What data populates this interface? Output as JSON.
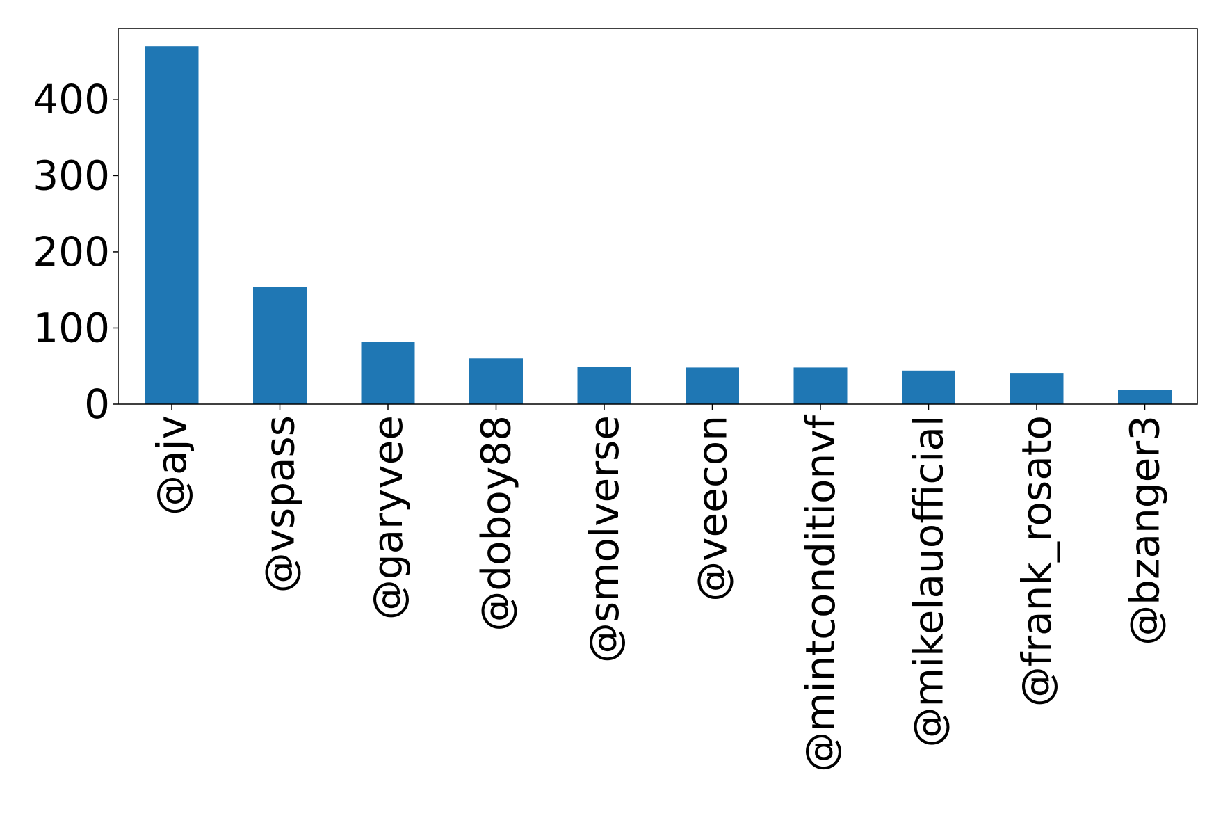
{
  "chart_data": {
    "type": "bar",
    "title": "",
    "xlabel": "",
    "ylabel": "",
    "categories": [
      "@ajv",
      "@vspass",
      "@garyvee",
      "@doboy88",
      "@smolverse",
      "@veecon",
      "@mintconditionvf",
      "@mikelauofficial",
      "@frank_rosato",
      "@bzanger3"
    ],
    "values": [
      470,
      154,
      82,
      60,
      49,
      48,
      48,
      44,
      41,
      19
    ],
    "ylim": [
      0,
      493
    ],
    "yticks": [
      0,
      100,
      200,
      300,
      400
    ],
    "bar_color": "#1f77b4",
    "grid": false,
    "legend": "none"
  }
}
